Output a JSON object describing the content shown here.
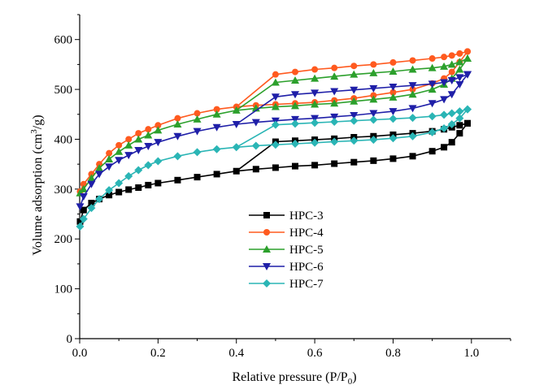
{
  "chart_data": {
    "type": "line",
    "title": "",
    "xlabel_main": "Relative pressure (P/P",
    "xlabel_sub": "0",
    "xlabel_end": ")",
    "ylabel_main": "Volume adsorption (cm",
    "ylabel_sup": "3",
    "ylabel_end": "/g)",
    "xlim": [
      0,
      1.1
    ],
    "ylim": [
      0,
      650
    ],
    "xticks": [
      0.0,
      0.2,
      0.4,
      0.6,
      0.8,
      1.0
    ],
    "xtick_labels": [
      "0.0",
      "0.2",
      "0.4",
      "0.6",
      "0.8",
      "1.0"
    ],
    "yticks": [
      0,
      100,
      200,
      300,
      400,
      500,
      600
    ],
    "ytick_labels": [
      "0",
      "100",
      "200",
      "300",
      "400",
      "500",
      "600"
    ],
    "legend_position": "center",
    "series": [
      {
        "name": "HPC-3",
        "color": "#000000",
        "marker": "square",
        "adsorption": {
          "x": [
            0.001,
            0.01,
            0.03,
            0.05,
            0.075,
            0.1,
            0.125,
            0.15,
            0.175,
            0.2,
            0.25,
            0.3,
            0.35,
            0.4,
            0.45,
            0.5,
            0.55,
            0.6,
            0.65,
            0.7,
            0.75,
            0.8,
            0.85,
            0.9,
            0.93,
            0.95,
            0.97,
            0.99
          ],
          "y": [
            235,
            258,
            272,
            280,
            288,
            294,
            299,
            303,
            308,
            312,
            318,
            324,
            330,
            336,
            340,
            343,
            346,
            348,
            351,
            354,
            357,
            361,
            366,
            376,
            384,
            394,
            412,
            432
          ]
        },
        "desorption": {
          "x": [
            0.99,
            0.97,
            0.95,
            0.93,
            0.9,
            0.85,
            0.8,
            0.75,
            0.7,
            0.65,
            0.6,
            0.55,
            0.5,
            0.4
          ],
          "y": [
            432,
            428,
            424,
            420,
            416,
            412,
            409,
            406,
            404,
            401,
            399,
            397,
            395,
            336
          ]
        }
      },
      {
        "name": "HPC-4",
        "color": "#ff5a1f",
        "marker": "circle",
        "adsorption": {
          "x": [
            0.001,
            0.01,
            0.03,
            0.05,
            0.075,
            0.1,
            0.125,
            0.15,
            0.175,
            0.2,
            0.25,
            0.3,
            0.35,
            0.4,
            0.45,
            0.5,
            0.55,
            0.6,
            0.65,
            0.7,
            0.75,
            0.8,
            0.85,
            0.9,
            0.93,
            0.95,
            0.97,
            0.99
          ],
          "y": [
            295,
            310,
            330,
            350,
            372,
            388,
            400,
            412,
            420,
            428,
            442,
            452,
            460,
            465,
            468,
            470,
            472,
            474,
            478,
            482,
            488,
            494,
            500,
            512,
            522,
            535,
            555,
            576
          ]
        },
        "desorption": {
          "x": [
            0.99,
            0.97,
            0.95,
            0.93,
            0.9,
            0.85,
            0.8,
            0.75,
            0.7,
            0.65,
            0.6,
            0.55,
            0.5,
            0.4
          ],
          "y": [
            576,
            572,
            568,
            565,
            562,
            558,
            554,
            550,
            547,
            543,
            540,
            535,
            530,
            465
          ]
        }
      },
      {
        "name": "HPC-5",
        "color": "#2ca02c",
        "marker": "triangle-up",
        "adsorption": {
          "x": [
            0.001,
            0.01,
            0.03,
            0.05,
            0.075,
            0.1,
            0.125,
            0.15,
            0.175,
            0.2,
            0.25,
            0.3,
            0.35,
            0.4,
            0.45,
            0.5,
            0.55,
            0.6,
            0.65,
            0.7,
            0.75,
            0.8,
            0.85,
            0.9,
            0.93,
            0.95,
            0.97,
            0.99
          ],
          "y": [
            292,
            300,
            322,
            342,
            360,
            375,
            388,
            400,
            408,
            418,
            430,
            440,
            450,
            458,
            462,
            465,
            467,
            470,
            472,
            476,
            480,
            484,
            490,
            500,
            510,
            522,
            540,
            562
          ]
        },
        "desorption": {
          "x": [
            0.99,
            0.97,
            0.95,
            0.93,
            0.9,
            0.85,
            0.8,
            0.75,
            0.7,
            0.65,
            0.6,
            0.55,
            0.5,
            0.4
          ],
          "y": [
            562,
            555,
            550,
            546,
            543,
            540,
            536,
            533,
            530,
            526,
            522,
            518,
            514,
            458
          ]
        }
      },
      {
        "name": "HPC-6",
        "color": "#1f1fa8",
        "marker": "triangle-down",
        "adsorption": {
          "x": [
            0.001,
            0.01,
            0.03,
            0.05,
            0.075,
            0.1,
            0.125,
            0.15,
            0.175,
            0.2,
            0.25,
            0.3,
            0.35,
            0.4,
            0.45,
            0.5,
            0.55,
            0.6,
            0.65,
            0.7,
            0.75,
            0.8,
            0.85,
            0.9,
            0.93,
            0.95,
            0.97,
            0.99
          ],
          "y": [
            265,
            285,
            310,
            330,
            345,
            358,
            368,
            378,
            386,
            394,
            406,
            416,
            424,
            430,
            434,
            437,
            440,
            442,
            445,
            448,
            452,
            456,
            462,
            472,
            480,
            490,
            510,
            530
          ]
        },
        "desorption": {
          "x": [
            0.99,
            0.97,
            0.95,
            0.93,
            0.9,
            0.85,
            0.8,
            0.75,
            0.7,
            0.65,
            0.6,
            0.55,
            0.5,
            0.4
          ],
          "y": [
            530,
            524,
            518,
            514,
            511,
            508,
            505,
            502,
            499,
            496,
            493,
            490,
            485,
            430
          ]
        }
      },
      {
        "name": "HPC-7",
        "color": "#2ab5b5",
        "marker": "diamond",
        "adsorption": {
          "x": [
            0.001,
            0.01,
            0.03,
            0.05,
            0.075,
            0.1,
            0.125,
            0.15,
            0.175,
            0.2,
            0.25,
            0.3,
            0.35,
            0.4,
            0.45,
            0.5,
            0.55,
            0.6,
            0.65,
            0.7,
            0.75,
            0.8,
            0.85,
            0.9,
            0.93,
            0.95,
            0.97,
            0.99
          ],
          "y": [
            225,
            240,
            262,
            280,
            298,
            312,
            326,
            338,
            348,
            356,
            366,
            374,
            380,
            384,
            387,
            389,
            391,
            393,
            395,
            397,
            399,
            402,
            406,
            414,
            422,
            430,
            442,
            460
          ]
        },
        "desorption": {
          "x": [
            0.99,
            0.97,
            0.95,
            0.93,
            0.9,
            0.85,
            0.8,
            0.75,
            0.7,
            0.65,
            0.6,
            0.55,
            0.5,
            0.4
          ],
          "y": [
            460,
            456,
            452,
            449,
            446,
            443,
            441,
            439,
            437,
            435,
            433,
            431,
            429,
            384
          ]
        }
      }
    ]
  }
}
